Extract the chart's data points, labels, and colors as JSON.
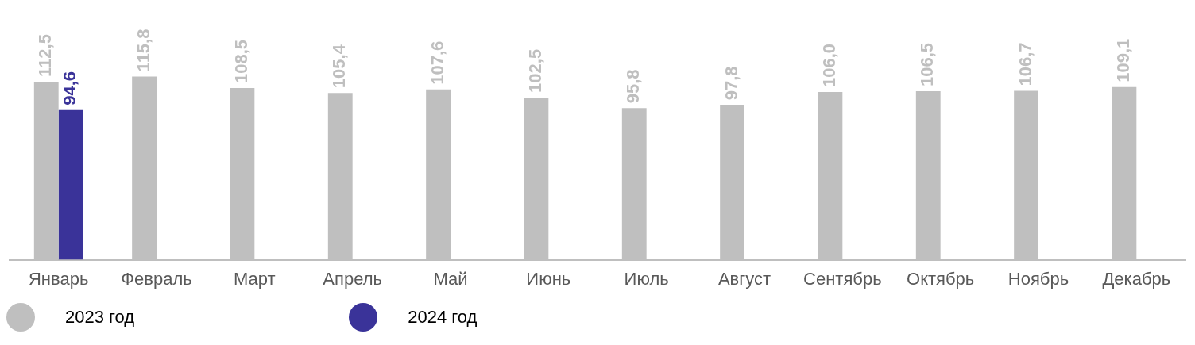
{
  "chart_data": {
    "type": "bar",
    "categories": [
      "Январь",
      "Февраль",
      "Март",
      "Апрель",
      "Май",
      "Июнь",
      "Июль",
      "Август",
      "Сентябрь",
      "Октябрь",
      "Ноябрь",
      "Декабрь"
    ],
    "series": [
      {
        "name": "2023 год",
        "color": "#bfbfbf",
        "values": [
          112.5,
          115.8,
          108.5,
          105.4,
          107.6,
          102.5,
          95.8,
          97.8,
          106.0,
          106.5,
          106.7,
          109.1
        ],
        "value_labels": [
          "112,5",
          "115,8",
          "108,5",
          "105,4",
          "107,6",
          "102,5",
          "95,8",
          "97,8",
          "106,0",
          "106,5",
          "106,7",
          "109,1"
        ]
      },
      {
        "name": "2024 год",
        "color": "#3a3399",
        "values": [
          94.6,
          null,
          null,
          null,
          null,
          null,
          null,
          null,
          null,
          null,
          null,
          null
        ],
        "value_labels": [
          "94,6",
          null,
          null,
          null,
          null,
          null,
          null,
          null,
          null,
          null,
          null,
          null
        ]
      }
    ],
    "tick_labels": "x",
    "legend": "bottom left",
    "grid": false
  }
}
